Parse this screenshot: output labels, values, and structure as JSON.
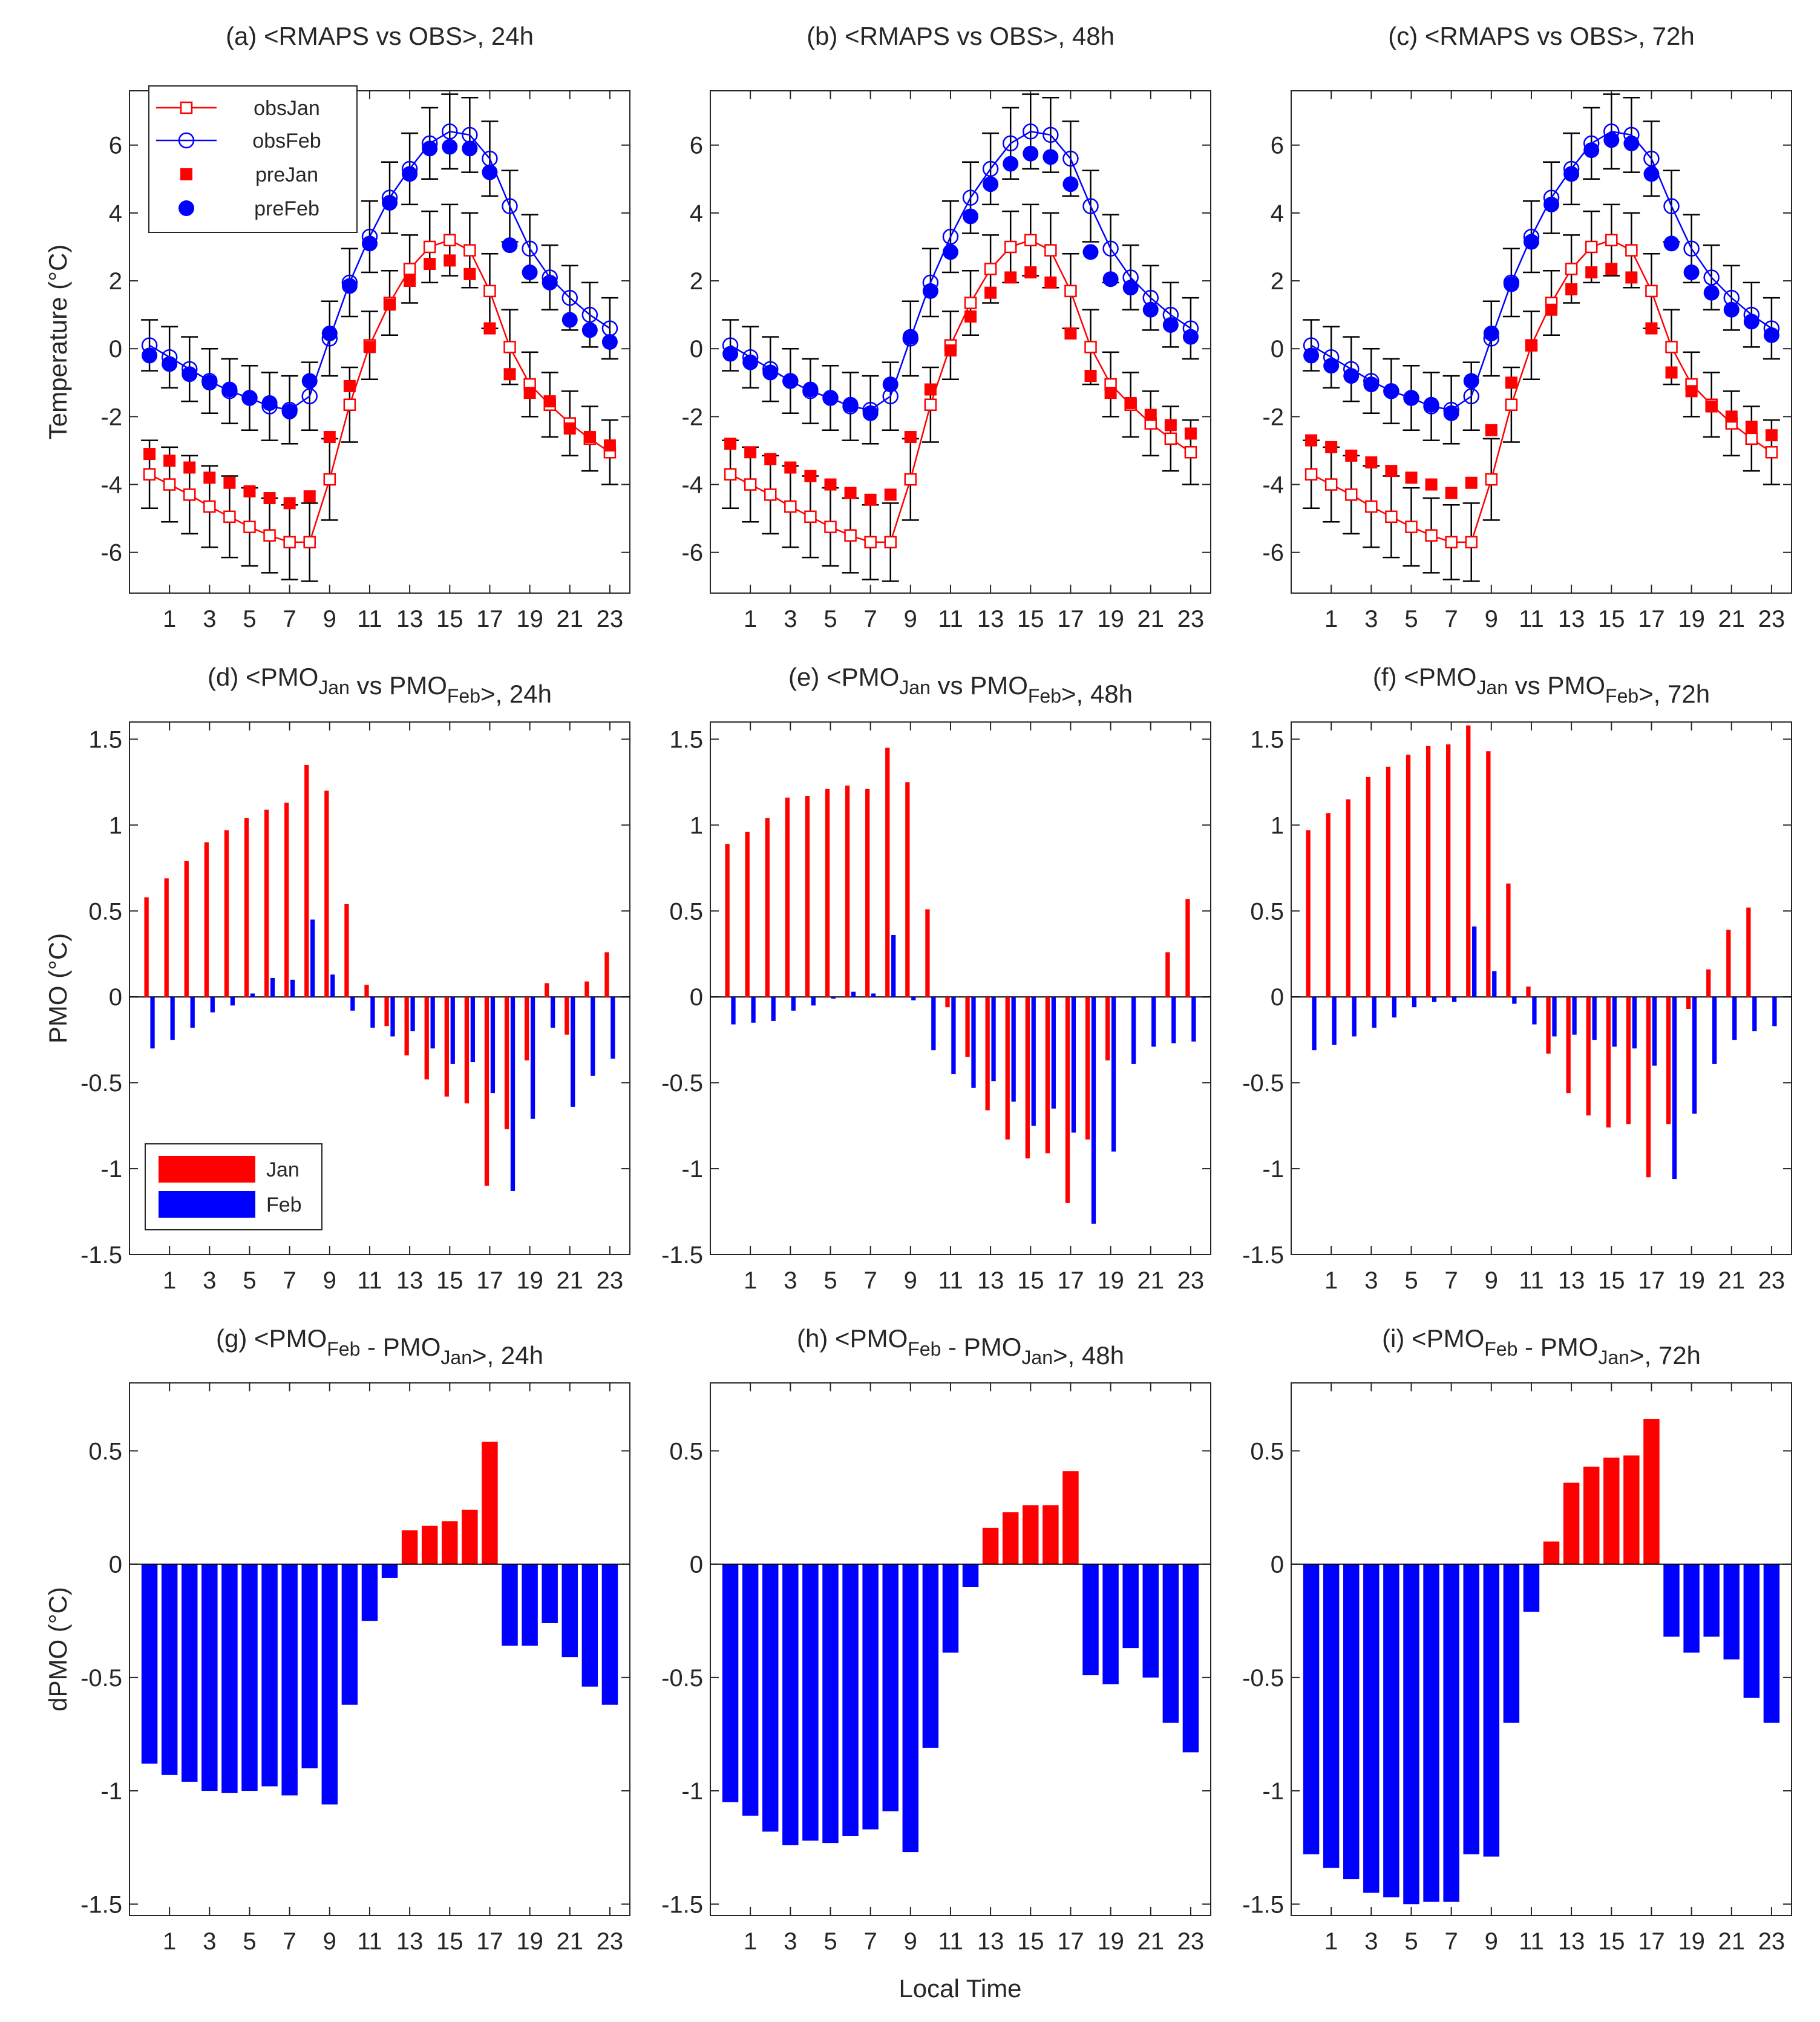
{
  "figure": {
    "x_axis_label": "Local Time",
    "y_axis_labels": {
      "temperature": "Temperature (°C)",
      "pmo": "PMO (°C)",
      "dpmo": "dPMO (°C)"
    },
    "x_tick_labels": [
      "1",
      "3",
      "5",
      "7",
      "9",
      "11",
      "13",
      "15",
      "17",
      "19",
      "21",
      "23"
    ],
    "colors": {
      "jan": "#ff0000",
      "feb": "#0000ff"
    },
    "legend_a": [
      "obsJan",
      "obsFeb",
      "preJan",
      "preFeb"
    ],
    "legend_d": [
      "Jan",
      "Feb"
    ]
  },
  "chart_data": [
    {
      "id": "a",
      "type": "line",
      "title": "(a) <RMAPS vs OBS>, 24h",
      "ylabel": "Temperature (°C)",
      "xlim": [
        -1,
        24
      ],
      "ylim": [
        -7.2,
        7.6
      ],
      "yticks": [
        -6,
        -4,
        -2,
        0,
        2,
        4,
        6
      ],
      "x": [
        0,
        1,
        2,
        3,
        4,
        5,
        6,
        7,
        8,
        9,
        10,
        11,
        12,
        13,
        14,
        15,
        16,
        17,
        18,
        19,
        20,
        21,
        22,
        23
      ],
      "series": [
        {
          "name": "obsJan",
          "values": [
            -3.7,
            -4.0,
            -4.3,
            -4.65,
            -4.95,
            -5.25,
            -5.5,
            -5.7,
            -5.7,
            -3.85,
            -1.65,
            0.1,
            1.35,
            2.35,
            3.0,
            3.2,
            2.9,
            1.7,
            0.05,
            -1.05,
            -1.65,
            -2.2,
            -2.65,
            -3.05
          ],
          "err": [
            1.0,
            1.1,
            1.15,
            1.2,
            1.2,
            1.15,
            1.1,
            1.1,
            1.15,
            1.2,
            1.1,
            1.0,
            0.95,
            1.0,
            1.05,
            1.05,
            1.1,
            1.1,
            1.1,
            0.95,
            0.95,
            0.95,
            0.95,
            0.95
          ]
        },
        {
          "name": "obsFeb",
          "values": [
            0.1,
            -0.25,
            -0.6,
            -0.95,
            -1.25,
            -1.45,
            -1.7,
            -1.8,
            -1.4,
            0.3,
            1.95,
            3.3,
            4.45,
            5.3,
            6.05,
            6.4,
            6.3,
            5.6,
            4.2,
            2.95,
            2.1,
            1.5,
            1.0,
            0.6
          ],
          "err": [
            0.75,
            0.9,
            0.95,
            0.95,
            0.95,
            0.95,
            1.0,
            1.0,
            1.0,
            1.1,
            1.0,
            1.05,
            1.05,
            1.05,
            1.05,
            1.1,
            1.1,
            1.1,
            1.05,
            1.0,
            0.95,
            0.95,
            0.95,
            0.9
          ]
        },
        {
          "name": "preJan",
          "values": [
            -3.1,
            -3.3,
            -3.5,
            -3.8,
            -3.95,
            -4.2,
            -4.4,
            -4.55,
            -4.35,
            -2.6,
            -1.1,
            0.05,
            1.3,
            2.0,
            2.5,
            2.6,
            2.2,
            0.6,
            -0.75,
            -1.3,
            -1.55,
            -2.35,
            -2.6,
            -2.85
          ]
        },
        {
          "name": "preFeb",
          "values": [
            -0.2,
            -0.45,
            -0.75,
            -1.0,
            -1.2,
            -1.45,
            -1.6,
            -1.85,
            -0.95,
            0.45,
            1.85,
            3.1,
            4.3,
            5.15,
            5.9,
            5.95,
            5.9,
            5.2,
            3.05,
            2.25,
            1.95,
            0.85,
            0.55,
            0.2
          ]
        }
      ]
    },
    {
      "id": "b",
      "type": "line",
      "title": "(b) <RMAPS vs OBS>, 48h",
      "ylabel": "",
      "xlim": [
        -1,
        24
      ],
      "ylim": [
        -7.2,
        7.6
      ],
      "yticks": [
        -6,
        -4,
        -2,
        0,
        2,
        4,
        6
      ],
      "x": [
        0,
        1,
        2,
        3,
        4,
        5,
        6,
        7,
        8,
        9,
        10,
        11,
        12,
        13,
        14,
        15,
        16,
        17,
        18,
        19,
        20,
        21,
        22,
        23
      ],
      "series": [
        {
          "name": "obsJan",
          "values": [
            -3.7,
            -4.0,
            -4.3,
            -4.65,
            -4.95,
            -5.25,
            -5.5,
            -5.7,
            -5.7,
            -3.85,
            -1.65,
            0.1,
            1.35,
            2.35,
            3.0,
            3.2,
            2.9,
            1.7,
            0.05,
            -1.05,
            -1.65,
            -2.2,
            -2.65,
            -3.05
          ],
          "err": [
            1.0,
            1.1,
            1.15,
            1.2,
            1.2,
            1.15,
            1.1,
            1.1,
            1.15,
            1.2,
            1.1,
            1.0,
            0.95,
            1.0,
            1.05,
            1.05,
            1.1,
            1.1,
            1.1,
            0.95,
            0.95,
            0.95,
            0.95,
            0.95
          ]
        },
        {
          "name": "obsFeb",
          "values": [
            0.1,
            -0.25,
            -0.6,
            -0.95,
            -1.25,
            -1.45,
            -1.7,
            -1.8,
            -1.4,
            0.3,
            1.95,
            3.3,
            4.45,
            5.3,
            6.05,
            6.4,
            6.3,
            5.6,
            4.2,
            2.95,
            2.1,
            1.5,
            1.0,
            0.6
          ],
          "err": [
            0.75,
            0.9,
            0.95,
            0.95,
            0.95,
            0.95,
            1.0,
            1.0,
            1.0,
            1.1,
            1.0,
            1.05,
            1.05,
            1.05,
            1.05,
            1.1,
            1.1,
            1.1,
            1.05,
            1.0,
            0.95,
            0.95,
            0.95,
            0.9
          ]
        },
        {
          "name": "preJan",
          "values": [
            -2.8,
            -3.05,
            -3.25,
            -3.5,
            -3.75,
            -4.0,
            -4.25,
            -4.45,
            -4.3,
            -2.6,
            -1.2,
            -0.05,
            0.95,
            1.65,
            2.1,
            2.25,
            1.95,
            0.45,
            -0.8,
            -1.3,
            -1.6,
            -1.95,
            -2.25,
            -2.5
          ]
        },
        {
          "name": "preFeb",
          "values": [
            -0.15,
            -0.4,
            -0.7,
            -0.95,
            -1.2,
            -1.45,
            -1.65,
            -1.9,
            -1.05,
            0.35,
            1.7,
            2.85,
            3.9,
            4.85,
            5.45,
            5.75,
            5.65,
            4.85,
            2.85,
            2.05,
            1.8,
            1.15,
            0.7,
            0.35
          ]
        }
      ]
    },
    {
      "id": "c",
      "type": "line",
      "title": "(c) <RMAPS vs OBS>, 72h",
      "ylabel": "",
      "xlim": [
        -1,
        24
      ],
      "ylim": [
        -7.2,
        7.6
      ],
      "yticks": [
        -6,
        -4,
        -2,
        0,
        2,
        4,
        6
      ],
      "x": [
        0,
        1,
        2,
        3,
        4,
        5,
        6,
        7,
        8,
        9,
        10,
        11,
        12,
        13,
        14,
        15,
        16,
        17,
        18,
        19,
        20,
        21,
        22,
        23
      ],
      "series": [
        {
          "name": "obsJan",
          "values": [
            -3.7,
            -4.0,
            -4.3,
            -4.65,
            -4.95,
            -5.25,
            -5.5,
            -5.7,
            -5.7,
            -3.85,
            -1.65,
            0.1,
            1.35,
            2.35,
            3.0,
            3.2,
            2.9,
            1.7,
            0.05,
            -1.05,
            -1.65,
            -2.2,
            -2.65,
            -3.05
          ],
          "err": [
            1.0,
            1.1,
            1.15,
            1.2,
            1.2,
            1.15,
            1.1,
            1.1,
            1.15,
            1.2,
            1.1,
            1.0,
            0.95,
            1.0,
            1.05,
            1.05,
            1.1,
            1.1,
            1.1,
            0.95,
            0.95,
            0.95,
            0.95,
            0.95
          ]
        },
        {
          "name": "obsFeb",
          "values": [
            0.1,
            -0.25,
            -0.6,
            -0.95,
            -1.25,
            -1.45,
            -1.7,
            -1.8,
            -1.4,
            0.3,
            1.95,
            3.3,
            4.45,
            5.3,
            6.05,
            6.4,
            6.3,
            5.6,
            4.2,
            2.95,
            2.1,
            1.5,
            1.0,
            0.6
          ],
          "err": [
            0.75,
            0.9,
            0.95,
            0.95,
            0.95,
            0.95,
            1.0,
            1.0,
            1.0,
            1.1,
            1.0,
            1.05,
            1.05,
            1.05,
            1.05,
            1.1,
            1.1,
            1.1,
            1.05,
            1.0,
            0.95,
            0.95,
            0.95,
            0.9
          ]
        },
        {
          "name": "preJan",
          "values": [
            -2.7,
            -2.9,
            -3.15,
            -3.35,
            -3.6,
            -3.8,
            -4.0,
            -4.25,
            -3.95,
            -2.4,
            -1.0,
            0.1,
            1.15,
            1.75,
            2.25,
            2.35,
            2.1,
            0.6,
            -0.7,
            -1.25,
            -1.7,
            -2.0,
            -2.3,
            -2.55
          ]
        },
        {
          "name": "preFeb",
          "values": [
            -0.2,
            -0.5,
            -0.8,
            -1.05,
            -1.25,
            -1.45,
            -1.65,
            -1.9,
            -0.95,
            0.45,
            1.9,
            3.15,
            4.25,
            5.15,
            5.85,
            6.15,
            6.05,
            5.15,
            3.1,
            2.25,
            1.65,
            1.15,
            0.8,
            0.4
          ]
        }
      ]
    },
    {
      "id": "d",
      "type": "bar",
      "title": "(d) <PMO_Jan vs PMO_Feb>, 24h",
      "ylabel": "PMO (°C)",
      "xlim": [
        -1,
        24
      ],
      "ylim": [
        -1.5,
        1.6
      ],
      "yticks": [
        -1.5,
        -1,
        -0.5,
        0,
        0.5,
        1,
        1.5
      ],
      "x": [
        0,
        1,
        2,
        3,
        4,
        5,
        6,
        7,
        8,
        9,
        10,
        11,
        12,
        13,
        14,
        15,
        16,
        17,
        18,
        19,
        20,
        21,
        22,
        23
      ],
      "series": [
        {
          "name": "Jan",
          "values": [
            0.58,
            0.69,
            0.79,
            0.9,
            0.97,
            1.04,
            1.09,
            1.13,
            1.35,
            1.2,
            0.54,
            0.07,
            -0.17,
            -0.34,
            -0.48,
            -0.58,
            -0.62,
            -1.1,
            -0.77,
            -0.37,
            0.08,
            -0.22,
            0.09,
            0.26
          ]
        },
        {
          "name": "Feb",
          "values": [
            -0.3,
            -0.25,
            -0.18,
            -0.09,
            -0.05,
            0.02,
            0.11,
            0.1,
            0.45,
            0.13,
            -0.08,
            -0.18,
            -0.23,
            -0.2,
            -0.3,
            -0.39,
            -0.38,
            -0.56,
            -1.13,
            -0.71,
            -0.18,
            -0.64,
            -0.46,
            -0.36
          ]
        }
      ]
    },
    {
      "id": "e",
      "type": "bar",
      "title": "(e) <PMO_Jan vs PMO_Feb>, 48h",
      "ylabel": "",
      "xlim": [
        -1,
        24
      ],
      "ylim": [
        -1.5,
        1.6
      ],
      "yticks": [
        -1.5,
        -1,
        -0.5,
        0,
        0.5,
        1,
        1.5
      ],
      "x": [
        0,
        1,
        2,
        3,
        4,
        5,
        6,
        7,
        8,
        9,
        10,
        11,
        12,
        13,
        14,
        15,
        16,
        17,
        18,
        19,
        20,
        21,
        22,
        23
      ],
      "series": [
        {
          "name": "Jan",
          "values": [
            0.89,
            0.96,
            1.04,
            1.16,
            1.17,
            1.21,
            1.23,
            1.21,
            1.45,
            1.25,
            0.51,
            -0.06,
            -0.35,
            -0.66,
            -0.83,
            -0.94,
            -0.91,
            -1.2,
            -0.83,
            -0.37,
            0.0,
            0.0,
            0.26,
            0.57
          ]
        },
        {
          "name": "Feb",
          "values": [
            -0.16,
            -0.15,
            -0.14,
            -0.08,
            -0.05,
            -0.01,
            0.03,
            0.02,
            0.36,
            -0.02,
            -0.31,
            -0.45,
            -0.53,
            -0.49,
            -0.61,
            -0.75,
            -0.65,
            -0.79,
            -1.32,
            -0.9,
            -0.39,
            -0.29,
            -0.27,
            -0.26
          ]
        }
      ]
    },
    {
      "id": "f",
      "type": "bar",
      "title": "(f) <PMO_Jan vs PMO_Feb>, 72h",
      "ylabel": "",
      "xlim": [
        -1,
        24
      ],
      "ylim": [
        -1.5,
        1.6
      ],
      "yticks": [
        -1.5,
        -1,
        -0.5,
        0,
        0.5,
        1,
        1.5
      ],
      "x": [
        0,
        1,
        2,
        3,
        4,
        5,
        6,
        7,
        8,
        9,
        10,
        11,
        12,
        13,
        14,
        15,
        16,
        17,
        18,
        19,
        20,
        21,
        22,
        23
      ],
      "series": [
        {
          "name": "Jan",
          "values": [
            0.97,
            1.07,
            1.15,
            1.28,
            1.34,
            1.41,
            1.46,
            1.47,
            1.58,
            1.43,
            0.66,
            0.06,
            -0.33,
            -0.56,
            -0.69,
            -0.76,
            -0.74,
            -1.05,
            -0.74,
            -0.07,
            0.16,
            0.39,
            0.52,
            0.0
          ]
        },
        {
          "name": "Feb",
          "values": [
            -0.31,
            -0.28,
            -0.23,
            -0.18,
            -0.12,
            -0.06,
            -0.03,
            -0.03,
            0.41,
            0.15,
            -0.04,
            -0.16,
            -0.23,
            -0.22,
            -0.25,
            -0.29,
            -0.3,
            -0.4,
            -1.06,
            -0.68,
            -0.39,
            -0.25,
            -0.2,
            -0.17
          ]
        }
      ]
    },
    {
      "id": "g",
      "type": "bar",
      "title": "(g) <PMO_Feb - PMO_Jan>, 24h",
      "ylabel": "dPMO (°C)",
      "xlim": [
        -1,
        24
      ],
      "ylim": [
        -1.55,
        0.8
      ],
      "yticks": [
        -1.5,
        -1,
        -0.5,
        0,
        0.5
      ],
      "x": [
        0,
        1,
        2,
        3,
        4,
        5,
        6,
        7,
        8,
        9,
        10,
        11,
        12,
        13,
        14,
        15,
        16,
        17,
        18,
        19,
        20,
        21,
        22,
        23
      ],
      "values": [
        -0.88,
        -0.93,
        -0.96,
        -1.0,
        -1.01,
        -1.0,
        -0.98,
        -1.02,
        -0.9,
        -1.06,
        -0.62,
        -0.25,
        -0.06,
        0.15,
        0.17,
        0.19,
        0.24,
        0.54,
        -0.36,
        -0.36,
        -0.26,
        -0.41,
        -0.54,
        -0.62
      ]
    },
    {
      "id": "h",
      "type": "bar",
      "title": "(h) <PMO_Feb - PMO_Jan>, 48h",
      "ylabel": "",
      "xlim": [
        -1,
        24
      ],
      "ylim": [
        -1.55,
        0.8
      ],
      "yticks": [
        -1.5,
        -1,
        -0.5,
        0,
        0.5
      ],
      "x": [
        0,
        1,
        2,
        3,
        4,
        5,
        6,
        7,
        8,
        9,
        10,
        11,
        12,
        13,
        14,
        15,
        16,
        17,
        18,
        19,
        20,
        21,
        22,
        23
      ],
      "values": [
        -1.05,
        -1.11,
        -1.18,
        -1.24,
        -1.22,
        -1.23,
        -1.2,
        -1.17,
        -1.09,
        -1.27,
        -0.81,
        -0.39,
        -0.1,
        0.16,
        0.23,
        0.26,
        0.26,
        0.41,
        -0.49,
        -0.53,
        -0.37,
        -0.5,
        -0.7,
        -0.83
      ]
    },
    {
      "id": "i",
      "type": "bar",
      "title": "(i) <PMO_Feb - PMO_Jan>, 72h",
      "ylabel": "",
      "xlim": [
        -1,
        24
      ],
      "ylim": [
        -1.55,
        0.8
      ],
      "yticks": [
        -1.5,
        -1,
        -0.5,
        0,
        0.5
      ],
      "x": [
        0,
        1,
        2,
        3,
        4,
        5,
        6,
        7,
        8,
        9,
        10,
        11,
        12,
        13,
        14,
        15,
        16,
        17,
        18,
        19,
        20,
        21,
        22,
        23
      ],
      "values": [
        -1.28,
        -1.34,
        -1.39,
        -1.45,
        -1.47,
        -1.5,
        -1.49,
        -1.49,
        -1.28,
        -1.29,
        -0.7,
        -0.21,
        0.1,
        0.36,
        0.43,
        0.47,
        0.48,
        0.64,
        -0.32,
        -0.39,
        -0.32,
        -0.42,
        -0.59,
        -0.7
      ]
    }
  ]
}
